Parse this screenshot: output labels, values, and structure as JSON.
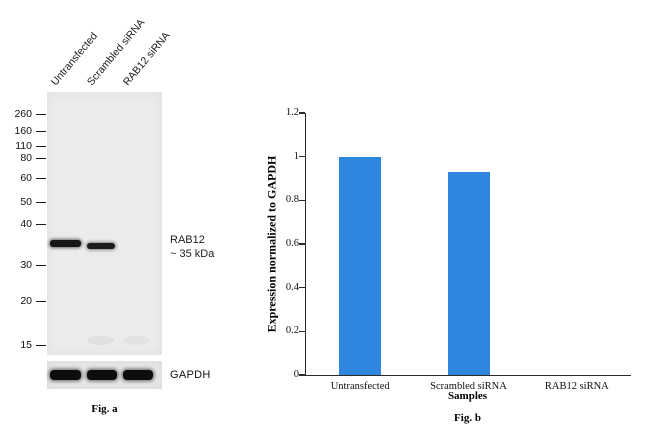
{
  "figure_a": {
    "caption": "Fig. a",
    "lane_labels": [
      "Untransfected",
      "Scrambled siRNA",
      "RAB12 siRNA"
    ],
    "mw_markers": [
      260,
      160,
      110,
      80,
      60,
      50,
      40,
      30,
      20,
      15
    ],
    "band_annotation": {
      "line1": "RAB12",
      "line2": "~ 35 kDa"
    },
    "loading_control_label": "GAPDH"
  },
  "chart_data": {
    "type": "bar",
    "title": "",
    "categories": [
      "Untransfected",
      "Scrambled siRNA",
      "RAB12 siRNA"
    ],
    "values": [
      1,
      0.93,
      0
    ],
    "xlabel": "Samples",
    "ylabel": "Expression normalized to GAPDH",
    "ylim": [
      0,
      1.2
    ],
    "yticks": [
      0,
      0.2,
      0.4,
      0.6,
      0.8,
      1,
      1.2
    ],
    "grid": false,
    "legend": "none",
    "bar_color": "#2e86de",
    "caption": "Fig. b"
  }
}
